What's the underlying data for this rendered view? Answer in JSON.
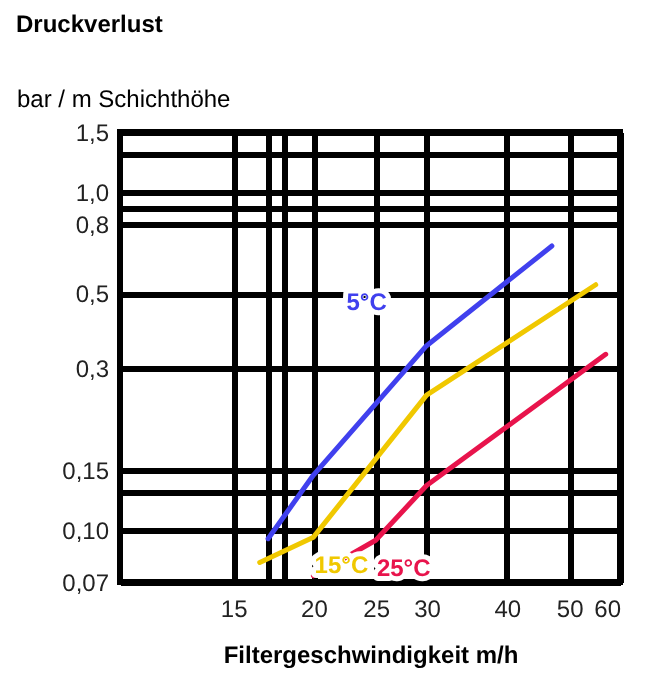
{
  "chart_data": {
    "type": "line",
    "title": "Druckverlust",
    "ylabel": "bar / m Schichthöhe",
    "xlabel": "Filtergeschwindigkeit  m/h",
    "log": "xy",
    "grid": true,
    "legend": false,
    "xlim": [
      10,
      60
    ],
    "ylim": [
      0.07,
      1.5
    ],
    "xticks": [
      15,
      {
        "value": 17,
        "label": null
      },
      {
        "value": 18,
        "label": null
      },
      20,
      25,
      30,
      40,
      50,
      60
    ],
    "yticks": [
      {
        "value": 0.07,
        "label": "0,07"
      },
      {
        "value": 0.1,
        "label": "0,10"
      },
      {
        "value": 0.13,
        "label": null
      },
      {
        "value": 0.15,
        "label": "0,15"
      },
      {
        "value": 0.3,
        "label": "0,3"
      },
      {
        "value": 0.5,
        "label": "0,5"
      },
      {
        "value": 0.8,
        "label": "0,8"
      },
      {
        "value": 0.9,
        "label": null
      },
      {
        "value": 1.0,
        "label": "1,0"
      },
      {
        "value": 1.3,
        "label": null
      },
      {
        "value": 1.5,
        "label": "1,5"
      }
    ],
    "series": [
      {
        "name": "5°C",
        "color": "#4040ee",
        "x": [
          17,
          20,
          30,
          47
        ],
        "values": [
          0.094,
          0.145,
          0.35,
          0.69
        ]
      },
      {
        "name": "15°C",
        "color": "#f0c800",
        "x": [
          16.5,
          20,
          30,
          55
        ],
        "values": [
          0.08,
          0.095,
          0.25,
          0.53
        ]
      },
      {
        "name": "25°C",
        "color": "#e8144c",
        "x": [
          20,
          25,
          30,
          57
        ],
        "values": [
          0.073,
          0.093,
          0.135,
          0.33
        ]
      }
    ]
  }
}
